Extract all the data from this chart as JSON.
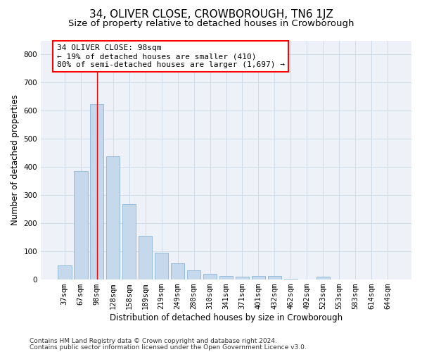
{
  "title": "34, OLIVER CLOSE, CROWBOROUGH, TN6 1JZ",
  "subtitle": "Size of property relative to detached houses in Crowborough",
  "xlabel": "Distribution of detached houses by size in Crowborough",
  "ylabel": "Number of detached properties",
  "categories": [
    "37sqm",
    "67sqm",
    "98sqm",
    "128sqm",
    "158sqm",
    "189sqm",
    "219sqm",
    "249sqm",
    "280sqm",
    "310sqm",
    "341sqm",
    "371sqm",
    "401sqm",
    "432sqm",
    "462sqm",
    "492sqm",
    "523sqm",
    "553sqm",
    "583sqm",
    "614sqm",
    "644sqm"
  ],
  "values": [
    48,
    385,
    622,
    438,
    267,
    155,
    95,
    57,
    32,
    18,
    12,
    10,
    11,
    12,
    2,
    0,
    8,
    0,
    0,
    0,
    0
  ],
  "bar_color": "#c5d8ec",
  "bar_edge_color": "#7aadd4",
  "highlight_index": 2,
  "ylim": [
    0,
    850
  ],
  "yticks": [
    0,
    100,
    200,
    300,
    400,
    500,
    600,
    700,
    800
  ],
  "annotation_text": "34 OLIVER CLOSE: 98sqm\n← 19% of detached houses are smaller (410)\n80% of semi-detached houses are larger (1,697) →",
  "footer1": "Contains HM Land Registry data © Crown copyright and database right 2024.",
  "footer2": "Contains public sector information licensed under the Open Government Licence v3.0.",
  "bg_color": "#eef2f8",
  "grid_color": "#c8d8e8",
  "title_fontsize": 11,
  "subtitle_fontsize": 9.5,
  "axis_label_fontsize": 8.5,
  "tick_fontsize": 7.5,
  "annotation_fontsize": 8,
  "footer_fontsize": 6.5
}
